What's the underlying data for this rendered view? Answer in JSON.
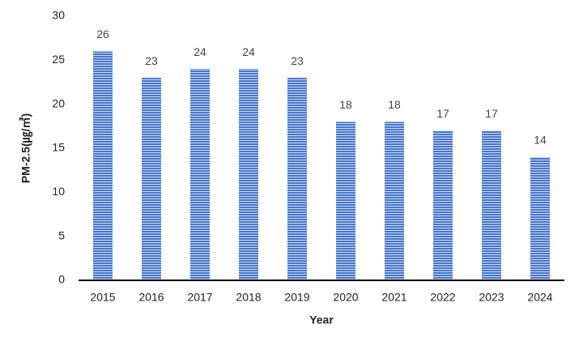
{
  "chart_data": {
    "type": "bar",
    "categories": [
      "2015",
      "2016",
      "2017",
      "2018",
      "2019",
      "2020",
      "2021",
      "2022",
      "2023",
      "2024"
    ],
    "values": [
      26,
      23,
      24,
      24,
      23,
      18,
      18,
      17,
      17,
      14
    ],
    "color": "#4a78c8",
    "ylim": [
      0,
      30
    ],
    "yticks": [
      0,
      5,
      10,
      15,
      20,
      25,
      30
    ],
    "grid": false,
    "x_label": "Year",
    "y_label": "PM-2.5(㎍/㎥)"
  }
}
